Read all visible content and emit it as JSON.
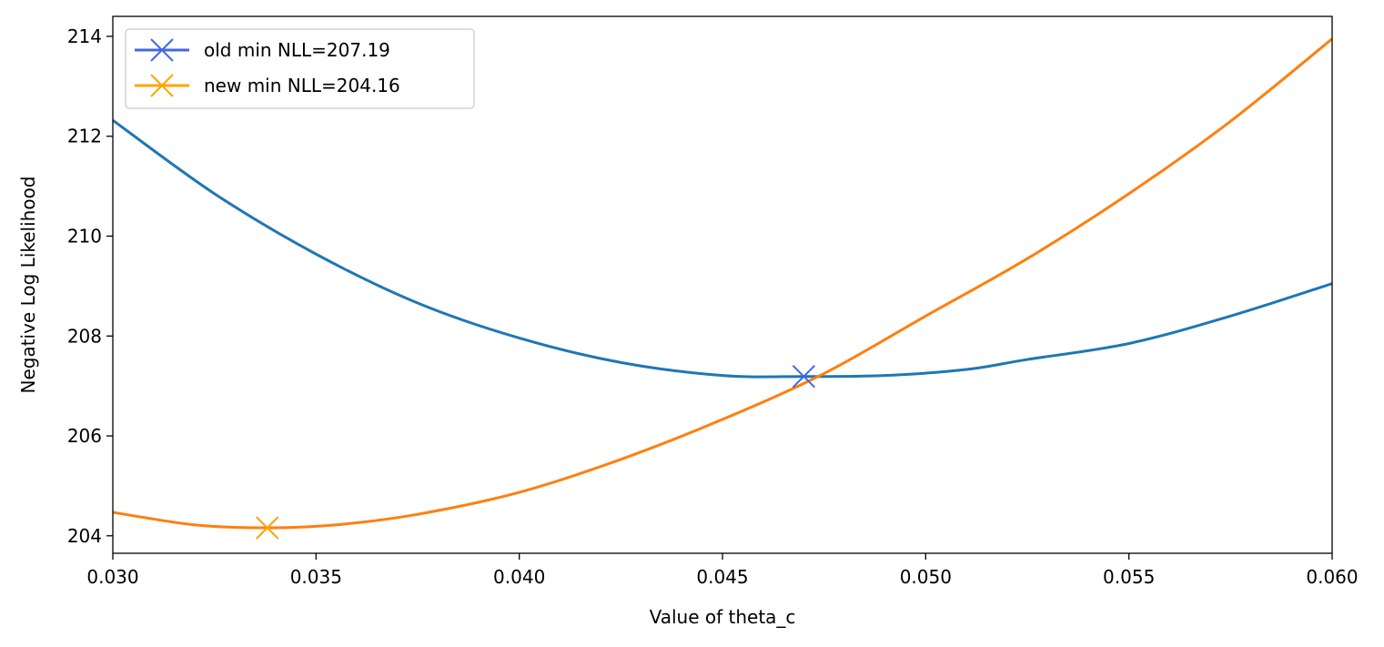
{
  "chart_data": {
    "type": "line",
    "title": "",
    "xlabel": "Value of theta_c",
    "ylabel": "Negative Log Likelihood",
    "xlim": [
      0.03,
      0.06
    ],
    "ylim": [
      203.65,
      214.4
    ],
    "xticks": [
      0.03,
      0.035,
      0.04,
      0.045,
      0.05,
      0.055,
      0.06
    ],
    "xtick_labels": [
      "0.030",
      "0.035",
      "0.040",
      "0.045",
      "0.050",
      "0.055",
      "0.060"
    ],
    "yticks": [
      204,
      206,
      208,
      210,
      212,
      214
    ],
    "ytick_labels": [
      "204",
      "206",
      "208",
      "210",
      "212",
      "214"
    ],
    "grid": false,
    "legend_position": "top-left",
    "series": [
      {
        "color": "#1f77b4",
        "x": [
          0.03,
          0.0325,
          0.035,
          0.0375,
          0.04,
          0.0425,
          0.045,
          0.047,
          0.049,
          0.051,
          0.0525,
          0.055,
          0.0575,
          0.06
        ],
        "y": [
          212.32,
          210.85,
          209.64,
          208.66,
          207.96,
          207.47,
          207.21,
          207.19,
          207.21,
          207.33,
          207.53,
          207.85,
          208.4,
          209.05
        ]
      },
      {
        "color": "#ff7f0e",
        "x": [
          0.03,
          0.032,
          0.0338,
          0.0355,
          0.0375,
          0.04,
          0.0425,
          0.045,
          0.0475,
          0.05,
          0.0525,
          0.055,
          0.0575,
          0.06
        ],
        "y": [
          204.47,
          204.22,
          204.16,
          204.22,
          204.43,
          204.87,
          205.53,
          206.33,
          207.25,
          208.4,
          209.55,
          210.85,
          212.3,
          213.95
        ]
      }
    ],
    "markers": [
      {
        "label": "old min NLL=207.19",
        "x": 0.047,
        "y": 207.19,
        "color": "#4169e1"
      },
      {
        "label": "new min NLL=204.16",
        "x": 0.0338,
        "y": 204.16,
        "color": "#ffa500"
      }
    ]
  }
}
